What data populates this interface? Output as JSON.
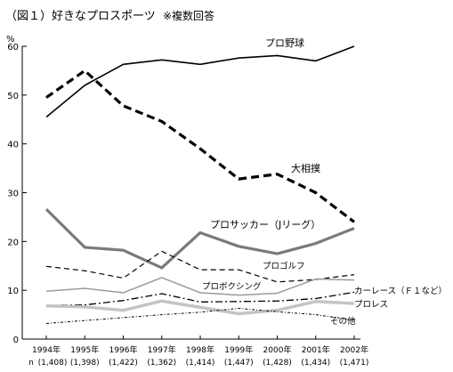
{
  "chart_data": {
    "type": "line",
    "title": "（図１）好きなプロスポーツ",
    "subtitle": "※複数回答",
    "ylabel": "%",
    "ylim": [
      0,
      60
    ],
    "yticks": [
      "0",
      "10",
      "20",
      "30",
      "40",
      "50",
      "60"
    ],
    "grid": false,
    "categories": [
      "1994年",
      "1995年",
      "1996年",
      "1997年",
      "1998年",
      "1999年",
      "2000年",
      "2001年",
      "2002年"
    ],
    "n_prefix": "n",
    "sample_sizes": [
      "(1,408)",
      "(1,398)",
      "(1,422)",
      "(1,362)",
      "(1,414)",
      "(1,447)",
      "(1,428)",
      "(1,434)",
      "(1,471)"
    ],
    "series": [
      {
        "name": "プロ野球",
        "values": [
          45.5,
          52,
          56.3,
          57.2,
          56.3,
          57.6,
          58.1,
          57,
          60
        ],
        "color": "#000000"
      },
      {
        "name": "大相撲",
        "values": [
          49.5,
          55,
          47.8,
          44.6,
          39,
          32.8,
          33.8,
          30,
          24
        ],
        "color": "#000000"
      },
      {
        "name": "プロサッカー（Jリーグ）",
        "values": [
          26.6,
          18.8,
          18.2,
          14.6,
          21.8,
          19,
          17.5,
          19.6,
          22.7
        ],
        "color": "#7a7a7a"
      },
      {
        "name": "プロゴルフ",
        "values": [
          14.9,
          14,
          12.5,
          18,
          14.2,
          14.2,
          11.7,
          12.2,
          13.2
        ],
        "color": "#000000"
      },
      {
        "name": "プロボクシング",
        "values": [
          9.8,
          10.4,
          9.5,
          12.6,
          9.5,
          9,
          9.4,
          12.3,
          12.1
        ],
        "color": "#9a9a9a"
      },
      {
        "name": "カーレース（Ｆ１など）",
        "values": [
          6.9,
          7,
          7.9,
          9.3,
          7.6,
          7.7,
          7.8,
          8.3,
          9.6
        ],
        "color": "#000000"
      },
      {
        "name": "プロレス",
        "values": [
          6.8,
          6.6,
          5.9,
          7.8,
          6.5,
          5.2,
          5.9,
          7.7,
          7.3
        ],
        "color": "#c4c4c4"
      },
      {
        "name": "その他",
        "values": [
          3.2,
          3.8,
          4.4,
          5,
          5.5,
          6.3,
          5.6,
          5,
          3.9
        ],
        "color": "#000000"
      }
    ]
  }
}
